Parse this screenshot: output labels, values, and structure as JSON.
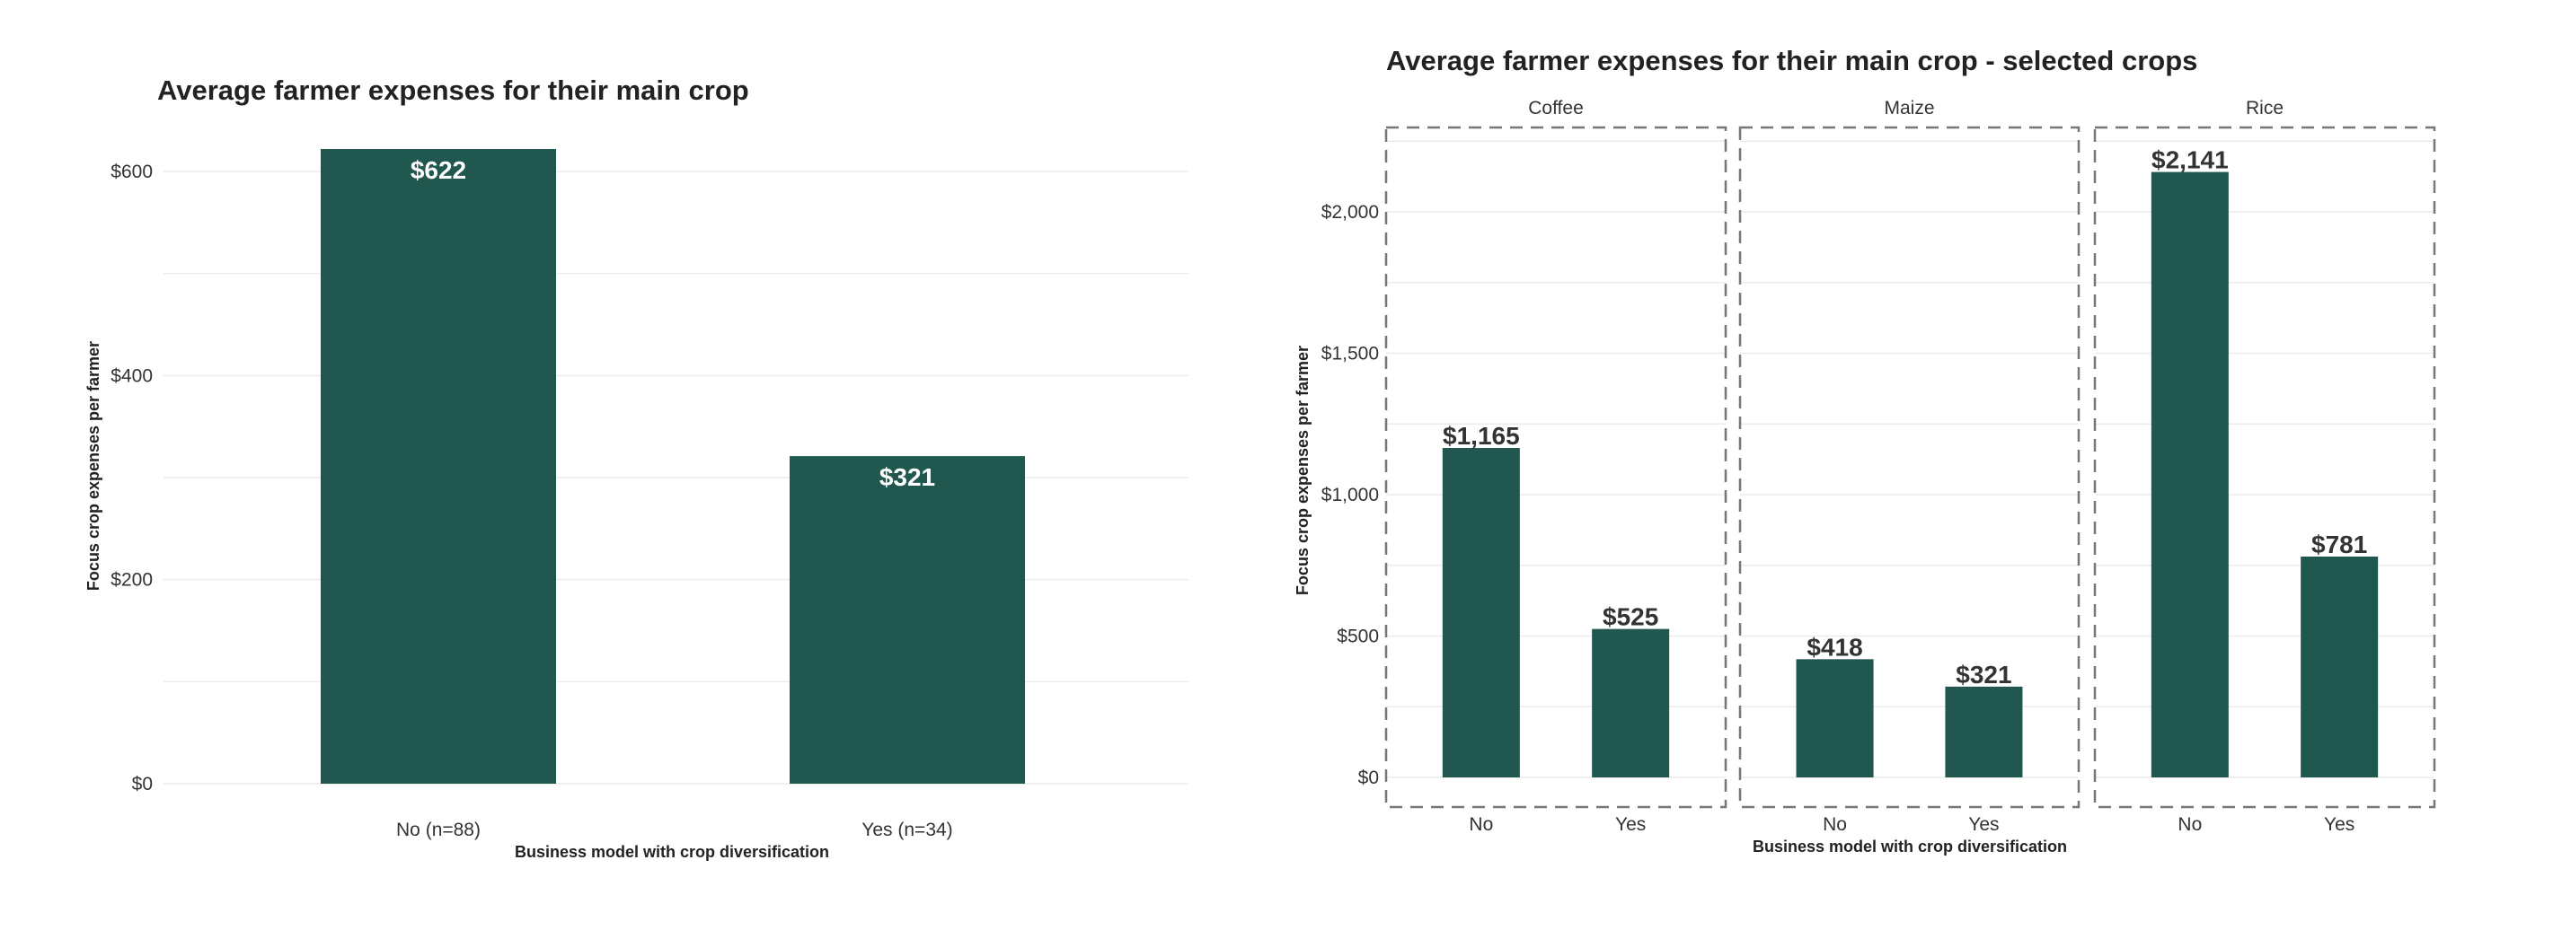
{
  "chart_data": [
    {
      "type": "bar",
      "title": "Average farmer expenses for their main crop",
      "xlabel": "Business model with crop diversification",
      "ylabel": "Focus crop expenses per farmer",
      "categories": [
        "No (n=88)",
        "Yes (n=34)"
      ],
      "values": [
        622,
        321
      ],
      "value_labels": [
        "$622",
        "$321"
      ],
      "yticks": [
        0,
        200,
        400,
        600
      ],
      "ytick_labels": [
        "$0",
        "$200",
        "$400",
        "$600"
      ],
      "ylim": [
        0,
        622
      ],
      "grid": true,
      "color": "#20574f"
    },
    {
      "type": "bar",
      "title": "Average farmer expenses for their main crop - selected crops",
      "xlabel": "Business model with crop diversification",
      "ylabel": "Focus crop expenses per farmer",
      "categories": [
        "No",
        "Yes"
      ],
      "facets": [
        {
          "name": "Coffee",
          "values": [
            1165,
            525
          ],
          "value_labels": [
            "$1,165",
            "$525"
          ]
        },
        {
          "name": "Maize",
          "values": [
            418,
            321
          ],
          "value_labels": [
            "$418",
            "$321"
          ]
        },
        {
          "name": "Rice",
          "values": [
            2141,
            781
          ],
          "value_labels": [
            "$2,141",
            "$781"
          ]
        }
      ],
      "yticks": [
        0,
        500,
        1000,
        1500,
        2000
      ],
      "ytick_labels": [
        "$0",
        "$500",
        "$1,000",
        "$1,500",
        "$2,000"
      ],
      "ylim": [
        -60,
        2250
      ],
      "grid": true,
      "color": "#20574f"
    }
  ]
}
